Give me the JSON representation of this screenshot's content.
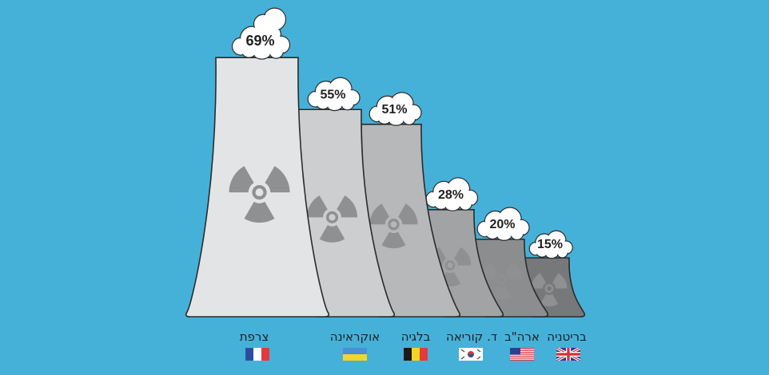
{
  "chart_data": {
    "type": "bar",
    "categories": [
      "צרפת",
      "אוקראינה",
      "בלגיה",
      "ד. קוריאה",
      "ארה\"ב",
      "בריטניה"
    ],
    "values": [
      69,
      55,
      51,
      28,
      20,
      15
    ],
    "value_labels": [
      "69%",
      "55%",
      "51%",
      "28%",
      "20%",
      "15%"
    ],
    "flags": [
      "france",
      "ukraine",
      "belgium",
      "south-korea",
      "usa",
      "uk"
    ],
    "icon": "radiation-icon",
    "colors": {
      "background": "#46b1d8",
      "towers": [
        "#e3e4e6",
        "#cdced0",
        "#b7b8ba",
        "#a2a3a5",
        "#8c8d8f",
        "#77787a"
      ],
      "cloud": "#ffffff",
      "symbol": "#8f9092"
    }
  }
}
